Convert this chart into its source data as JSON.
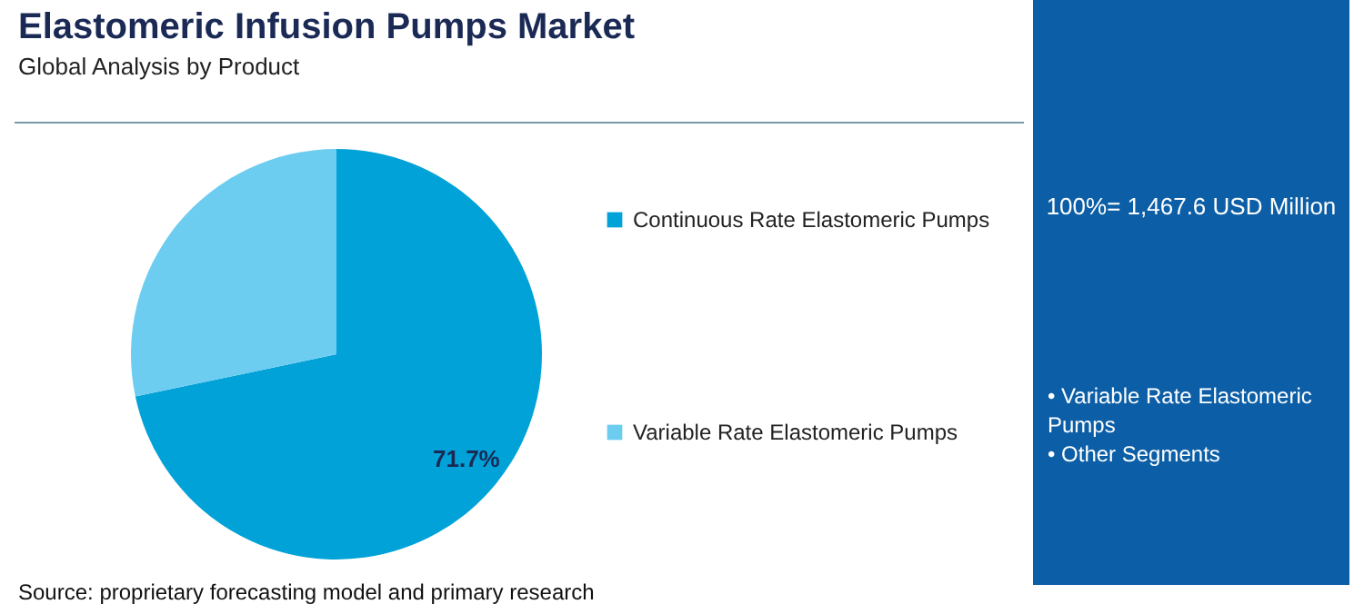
{
  "chart_data": {
    "type": "pie",
    "title": "Elastomeric Infusion Pumps Market",
    "subtitle": "Global Analysis by Product",
    "categories": [
      "Continuous Rate Elastomeric Pumps",
      "Variable Rate Elastomeric Pumps"
    ],
    "values": [
      71.7,
      28.3
    ],
    "colors": [
      "#00a2d8",
      "#6dcdf1"
    ],
    "value_labels": [
      "71.7%",
      null
    ],
    "legend": "right",
    "annotations": [
      "100%= 1,467.6 USD Million",
      "• Variable Rate Elastomeric Pumps",
      "• Other Segments",
      "Source: proprietary forecasting model and primary research"
    ]
  }
}
